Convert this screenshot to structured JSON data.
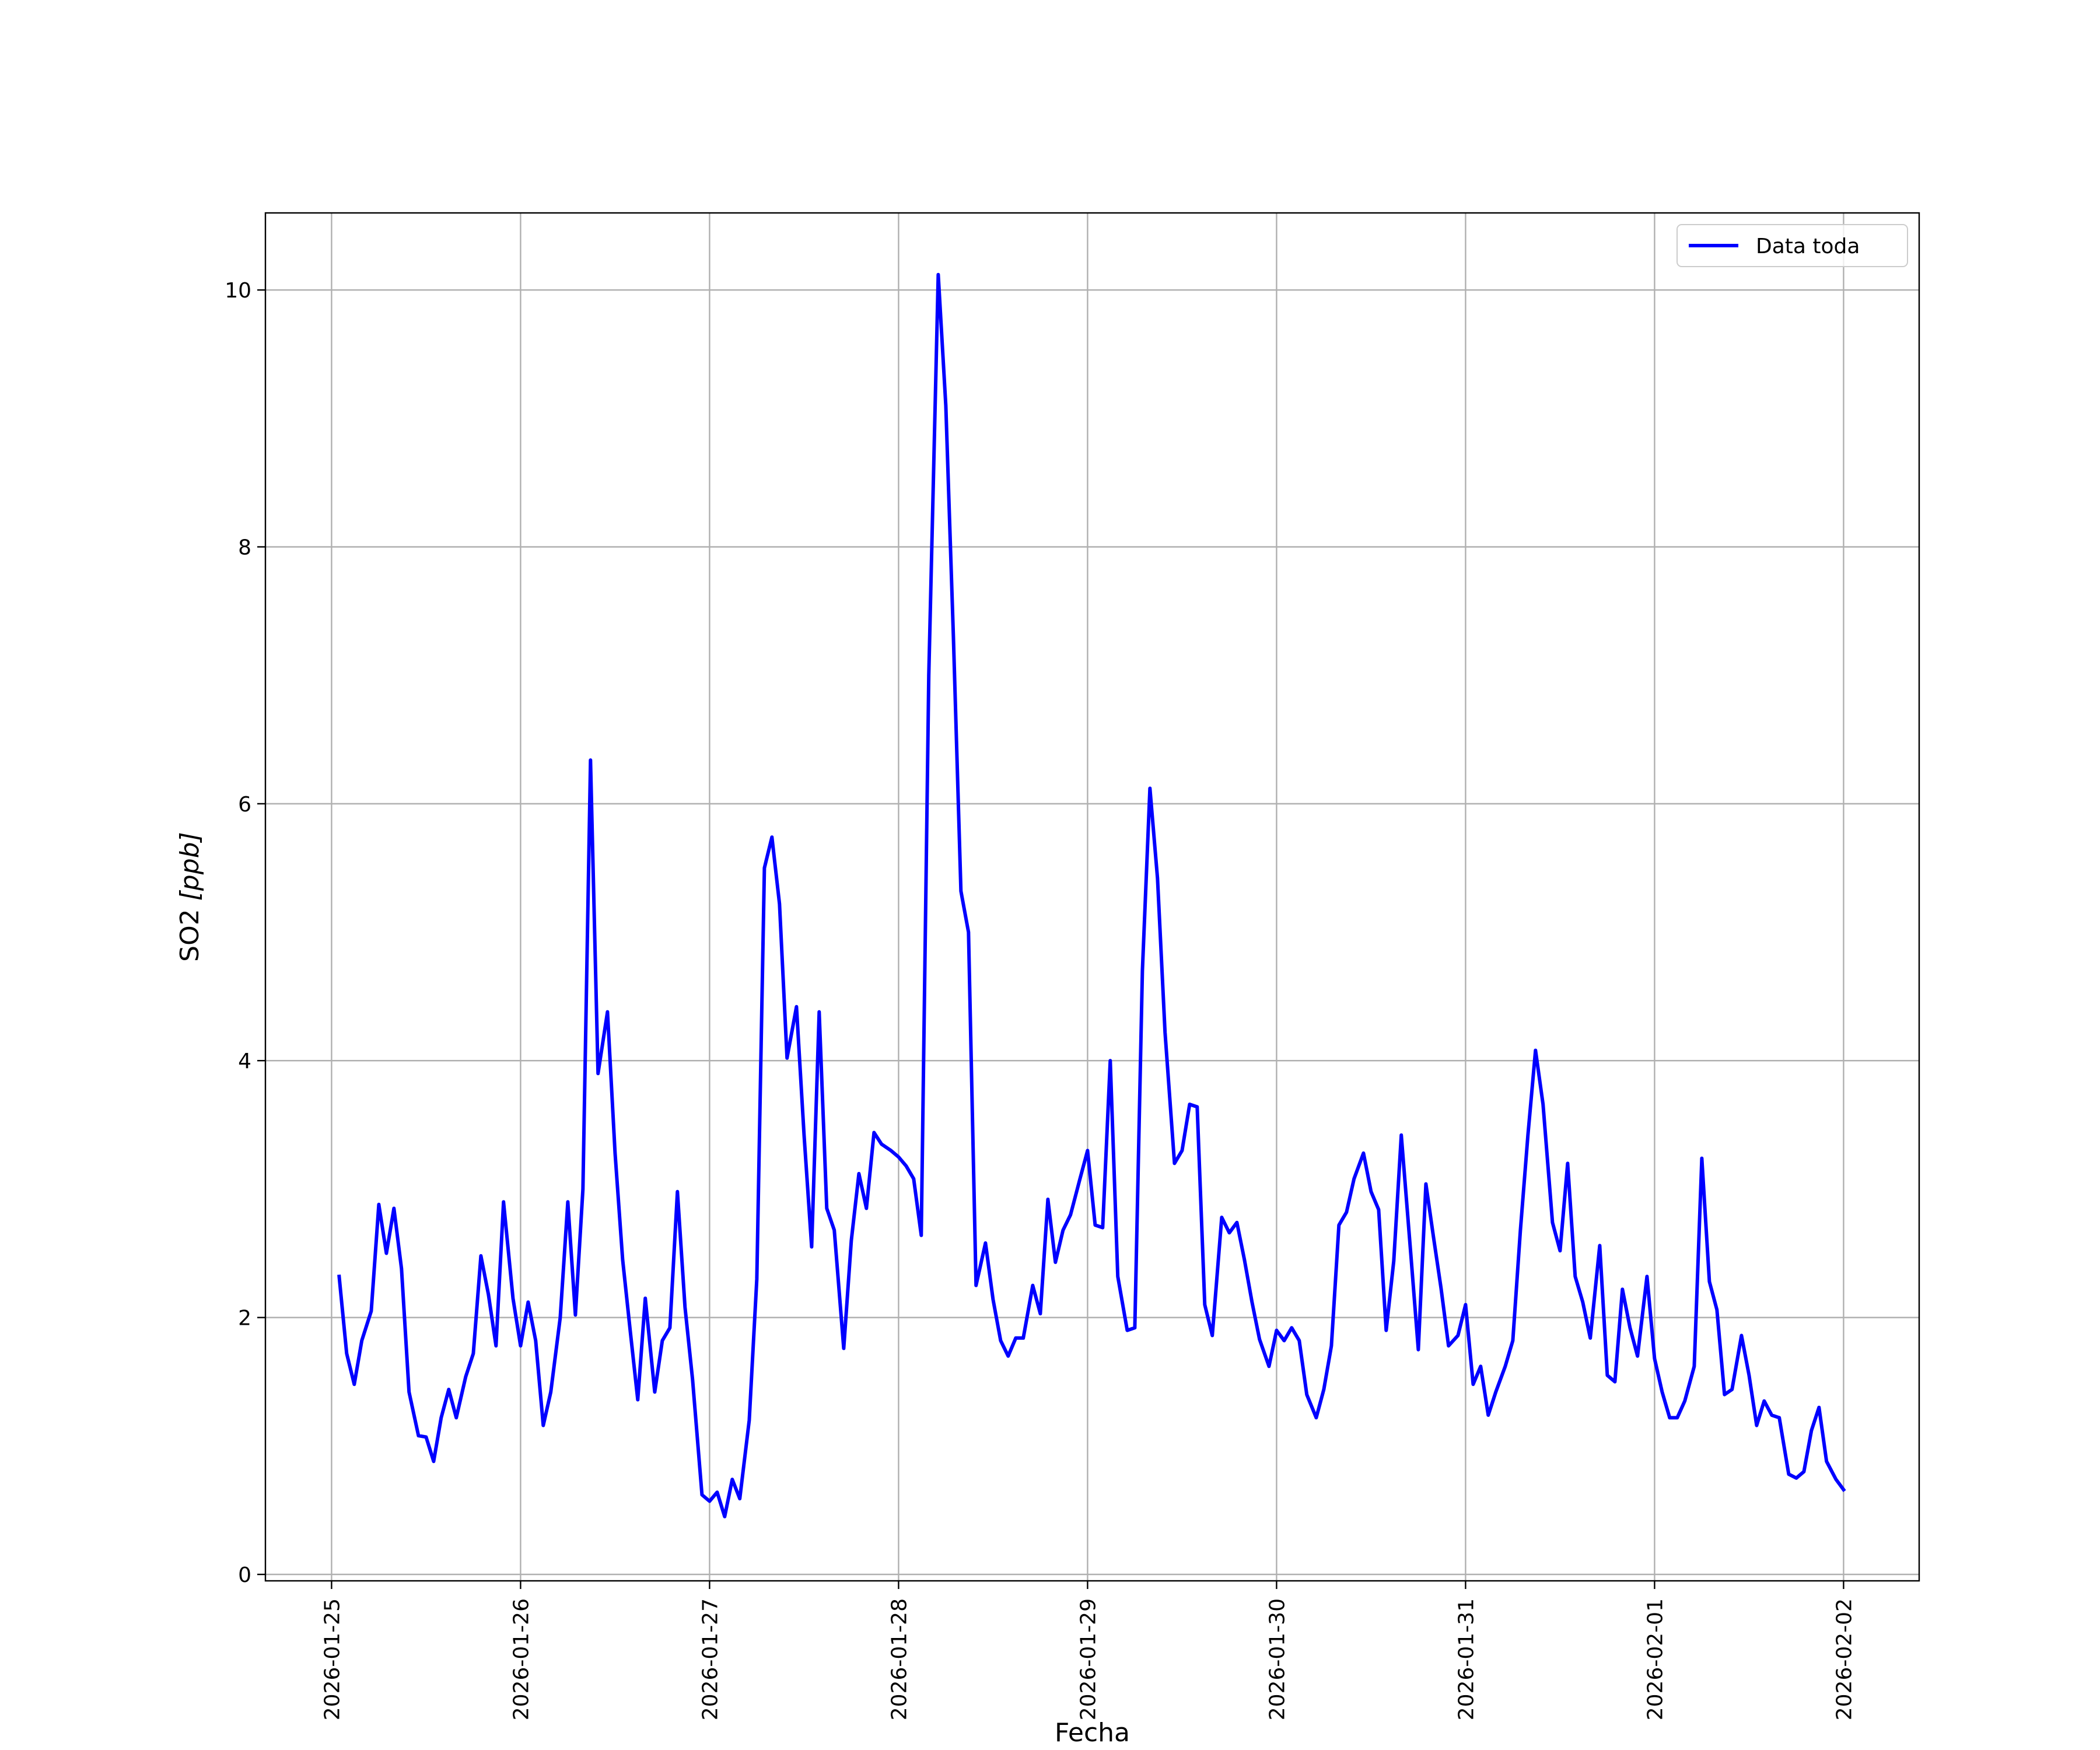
{
  "chart_data": {
    "type": "line",
    "xlabel": "Fecha",
    "ylabel_main": "SO2 ",
    "ylabel_unit": "[ppb]",
    "x_unit": "days since 2026-01-25",
    "x_ticks": [
      {
        "value": 0,
        "label": "2026-01-25"
      },
      {
        "value": 1,
        "label": "2026-01-26"
      },
      {
        "value": 2,
        "label": "2026-01-27"
      },
      {
        "value": 3,
        "label": "2026-01-28"
      },
      {
        "value": 4,
        "label": "2026-01-29"
      },
      {
        "value": 5,
        "label": "2026-01-30"
      },
      {
        "value": 6,
        "label": "2026-01-31"
      },
      {
        "value": 7,
        "label": "2026-02-01"
      },
      {
        "value": 8,
        "label": "2026-02-02"
      }
    ],
    "y_ticks": [
      {
        "value": 0,
        "label": "0"
      },
      {
        "value": 2,
        "label": "2"
      },
      {
        "value": 4,
        "label": "4"
      },
      {
        "value": 6,
        "label": "6"
      },
      {
        "value": 8,
        "label": "8"
      },
      {
        "value": 10,
        "label": "10"
      }
    ],
    "xlim": [
      -0.35,
      8.4
    ],
    "ylim": [
      -0.05,
      10.6
    ],
    "grid": true,
    "legend_position": "top-right",
    "series": [
      {
        "name": "Data toda",
        "color": "#0000ff",
        "x": [
          0.04,
          0.08,
          0.12,
          0.16,
          0.21,
          0.25,
          0.29,
          0.33,
          0.37,
          0.41,
          0.46,
          0.5,
          0.54,
          0.58,
          0.62,
          0.66,
          0.71,
          0.75,
          0.79,
          0.83,
          0.87,
          0.91,
          0.96,
          1.0,
          1.04,
          1.08,
          1.12,
          1.16,
          1.21,
          1.25,
          1.29,
          1.33,
          1.37,
          1.41,
          1.46,
          1.5,
          1.54,
          1.58,
          1.62,
          1.66,
          1.71,
          1.75,
          1.79,
          1.83,
          1.87,
          1.91,
          1.96,
          2.0,
          2.04,
          2.08,
          2.12,
          2.16,
          2.21,
          2.25,
          2.29,
          2.33,
          2.37,
          2.41,
          2.46,
          2.5,
          2.54,
          2.58,
          2.62,
          2.66,
          2.71,
          2.75,
          2.79,
          2.83,
          2.87,
          2.91,
          2.96,
          3.0,
          3.04,
          3.08,
          3.12,
          3.16,
          3.21,
          3.25,
          3.29,
          3.33,
          3.37,
          3.41,
          3.46,
          3.5,
          3.54,
          3.58,
          3.62,
          3.66,
          3.71,
          3.75,
          3.79,
          3.83,
          3.87,
          3.91,
          3.96,
          4.0,
          4.04,
          4.08,
          4.12,
          4.16,
          4.21,
          4.25,
          4.29,
          4.33,
          4.37,
          4.41,
          4.46,
          4.5,
          4.54,
          4.58,
          4.62,
          4.66,
          4.71,
          4.75,
          4.79,
          4.83,
          4.87,
          4.91,
          4.96,
          5.0,
          5.04,
          5.08,
          5.12,
          5.16,
          5.21,
          5.25,
          5.29,
          5.33,
          5.37,
          5.41,
          5.46,
          5.5,
          5.54,
          5.58,
          5.62,
          5.66,
          5.71,
          5.75,
          5.79,
          5.83,
          5.87,
          5.91,
          5.96,
          6.0,
          6.04,
          6.08,
          6.12,
          6.16,
          6.21,
          6.25,
          6.29,
          6.33,
          6.37,
          6.41,
          6.46,
          6.5,
          6.54,
          6.58,
          6.62,
          6.66,
          6.71,
          6.75,
          6.79,
          6.83,
          6.87,
          6.91,
          6.96,
          7.0,
          7.04,
          7.08,
          7.12,
          7.16,
          7.21,
          7.25,
          7.29,
          7.33,
          7.37,
          7.41,
          7.46,
          7.5,
          7.54,
          7.58,
          7.62,
          7.66,
          7.71,
          7.75,
          7.79,
          7.83,
          7.87,
          7.91,
          7.96,
          8.0
        ],
        "y": [
          2.32,
          1.72,
          1.48,
          1.82,
          2.05,
          2.88,
          2.5,
          2.85,
          2.38,
          1.42,
          1.08,
          1.07,
          0.88,
          1.22,
          1.44,
          1.22,
          1.54,
          1.72,
          2.48,
          2.18,
          1.78,
          2.9,
          2.15,
          1.78,
          2.12,
          1.82,
          1.16,
          1.42,
          2.0,
          2.9,
          2.02,
          3.0,
          6.34,
          3.9,
          4.38,
          3.28,
          2.45,
          1.9,
          1.36,
          2.15,
          1.42,
          1.82,
          1.92,
          2.98,
          2.08,
          1.52,
          0.62,
          0.57,
          0.64,
          0.45,
          0.74,
          0.59,
          1.2,
          2.3,
          5.5,
          5.74,
          5.22,
          4.02,
          4.42,
          3.42,
          2.55,
          4.38,
          2.85,
          2.68,
          1.76,
          2.6,
          3.12,
          2.85,
          3.44,
          3.35,
          3.3,
          3.25,
          3.18,
          3.08,
          2.64,
          7.0,
          10.12,
          9.1,
          7.3,
          5.32,
          5.0,
          2.25,
          2.58,
          2.14,
          1.82,
          1.7,
          1.84,
          1.84,
          2.25,
          2.03,
          2.92,
          2.43,
          2.68,
          2.8,
          3.08,
          3.3,
          2.72,
          2.7,
          4.0,
          2.32,
          1.9,
          1.92,
          4.7,
          6.12,
          5.42,
          4.22,
          3.2,
          3.3,
          3.66,
          3.64,
          2.1,
          1.86,
          2.78,
          2.66,
          2.74,
          2.45,
          2.12,
          1.83,
          1.62,
          1.9,
          1.82,
          1.92,
          1.82,
          1.4,
          1.22,
          1.44,
          1.78,
          2.72,
          2.82,
          3.08,
          3.28,
          2.98,
          2.84,
          1.9,
          2.44,
          3.42,
          2.5,
          1.75,
          3.04,
          2.63,
          2.23,
          1.78,
          1.86,
          2.1,
          1.48,
          1.62,
          1.24,
          1.42,
          1.62,
          1.82,
          2.68,
          3.42,
          4.08,
          3.66,
          2.74,
          2.52,
          3.2,
          2.32,
          2.12,
          1.84,
          2.56,
          1.55,
          1.5,
          2.22,
          1.92,
          1.7,
          2.32,
          1.68,
          1.42,
          1.22,
          1.22,
          1.35,
          1.62,
          3.24,
          2.28,
          2.06,
          1.4,
          1.44,
          1.86,
          1.55,
          1.16,
          1.35,
          1.24,
          1.22,
          0.78,
          0.75,
          0.8,
          1.12,
          1.3,
          0.88,
          0.74,
          0.66
        ]
      }
    ]
  }
}
